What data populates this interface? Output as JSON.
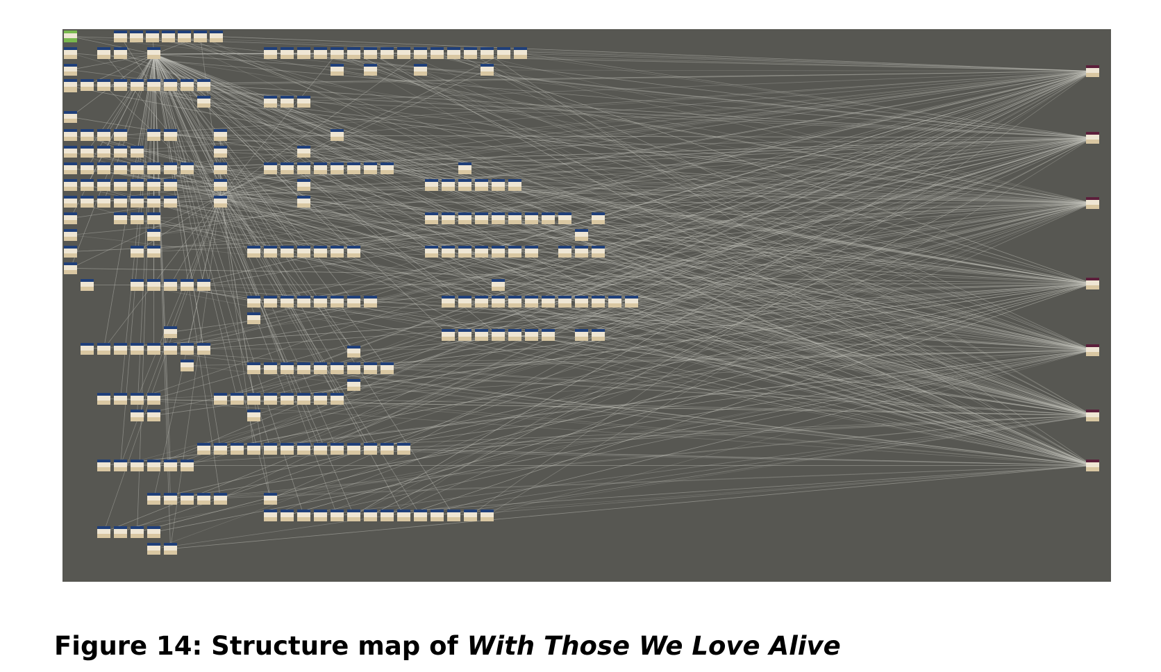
{
  "figure": {
    "label": "Figure 14: Structure map of ",
    "title": "With Those We Love Alive",
    "image_name": "twine-structure-map",
    "colors": {
      "canvas": "#575752",
      "link_line": "#c8c8c0",
      "passage_body": "#efe6d4",
      "passage_bottom": "#d9c7a2",
      "passage_header": "#1f3f7a",
      "start_passage": "#79b84e",
      "hub_header": "#5c1f3b"
    }
  }
}
